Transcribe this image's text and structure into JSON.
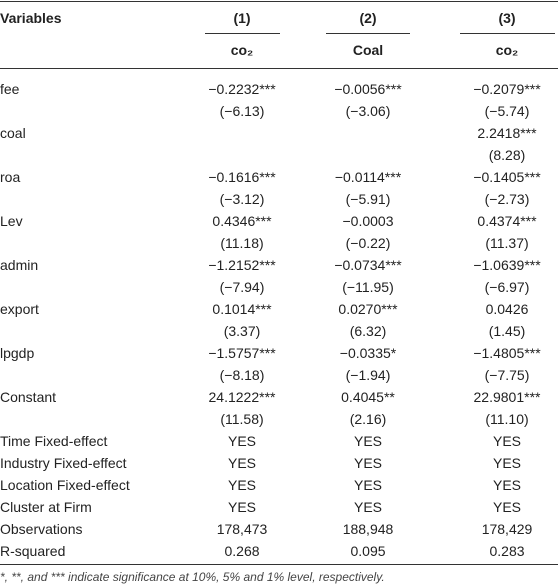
{
  "table": {
    "header": [
      "Variables",
      "(1)",
      "(2)",
      "(3)"
    ],
    "subheader": [
      "co₂",
      "Coal",
      "co₂"
    ],
    "rows": [
      [
        "fee",
        "−0.2232***",
        "−0.0056***",
        "−0.2079***"
      ],
      [
        null,
        "(−6.13)",
        "(−3.06)",
        "(−5.74)"
      ],
      [
        "coal",
        null,
        null,
        "2.2418***"
      ],
      [
        null,
        null,
        null,
        "(8.28)"
      ],
      [
        "roa",
        "−0.1616***",
        "−0.0114***",
        "−0.1405***"
      ],
      [
        null,
        "(−3.12)",
        "(−5.91)",
        "(−2.73)"
      ],
      [
        "Lev",
        "0.4346***",
        "−0.0003",
        "0.4374***"
      ],
      [
        null,
        "(11.18)",
        "(−0.22)",
        "(11.37)"
      ],
      [
        "admin",
        "−1.2152***",
        "−0.0734***",
        "−1.0639***"
      ],
      [
        null,
        "(−7.94)",
        "(−11.95)",
        "(−6.97)"
      ],
      [
        "export",
        "0.1014***",
        "0.0270***",
        "0.0426"
      ],
      [
        null,
        "(3.37)",
        "(6.32)",
        "(1.45)"
      ],
      [
        "lpgdp",
        "−1.5757***",
        "−0.0335*",
        "−1.4805***"
      ],
      [
        null,
        "(−8.18)",
        "(−1.94)",
        "(−7.75)"
      ],
      [
        "Constant",
        "24.1222***",
        "0.4045**",
        "22.9801***"
      ],
      [
        null,
        "(11.58)",
        "(2.16)",
        "(11.10)"
      ],
      [
        "Time Fixed-effect",
        "YES",
        "YES",
        "YES"
      ],
      [
        "Industry Fixed-effect",
        "YES",
        "YES",
        "YES"
      ],
      [
        "Location Fixed-effect",
        "YES",
        "YES",
        "YES"
      ],
      [
        "Cluster at Firm",
        "YES",
        "YES",
        "YES"
      ],
      [
        "Observations",
        "178,473",
        "188,948",
        "178,429"
      ],
      [
        "R-squared",
        "0.268",
        "0.095",
        "0.283"
      ]
    ],
    "footnote": "*, **, and *** indicate significance at 10%, 5% and 1% level, respectively."
  }
}
